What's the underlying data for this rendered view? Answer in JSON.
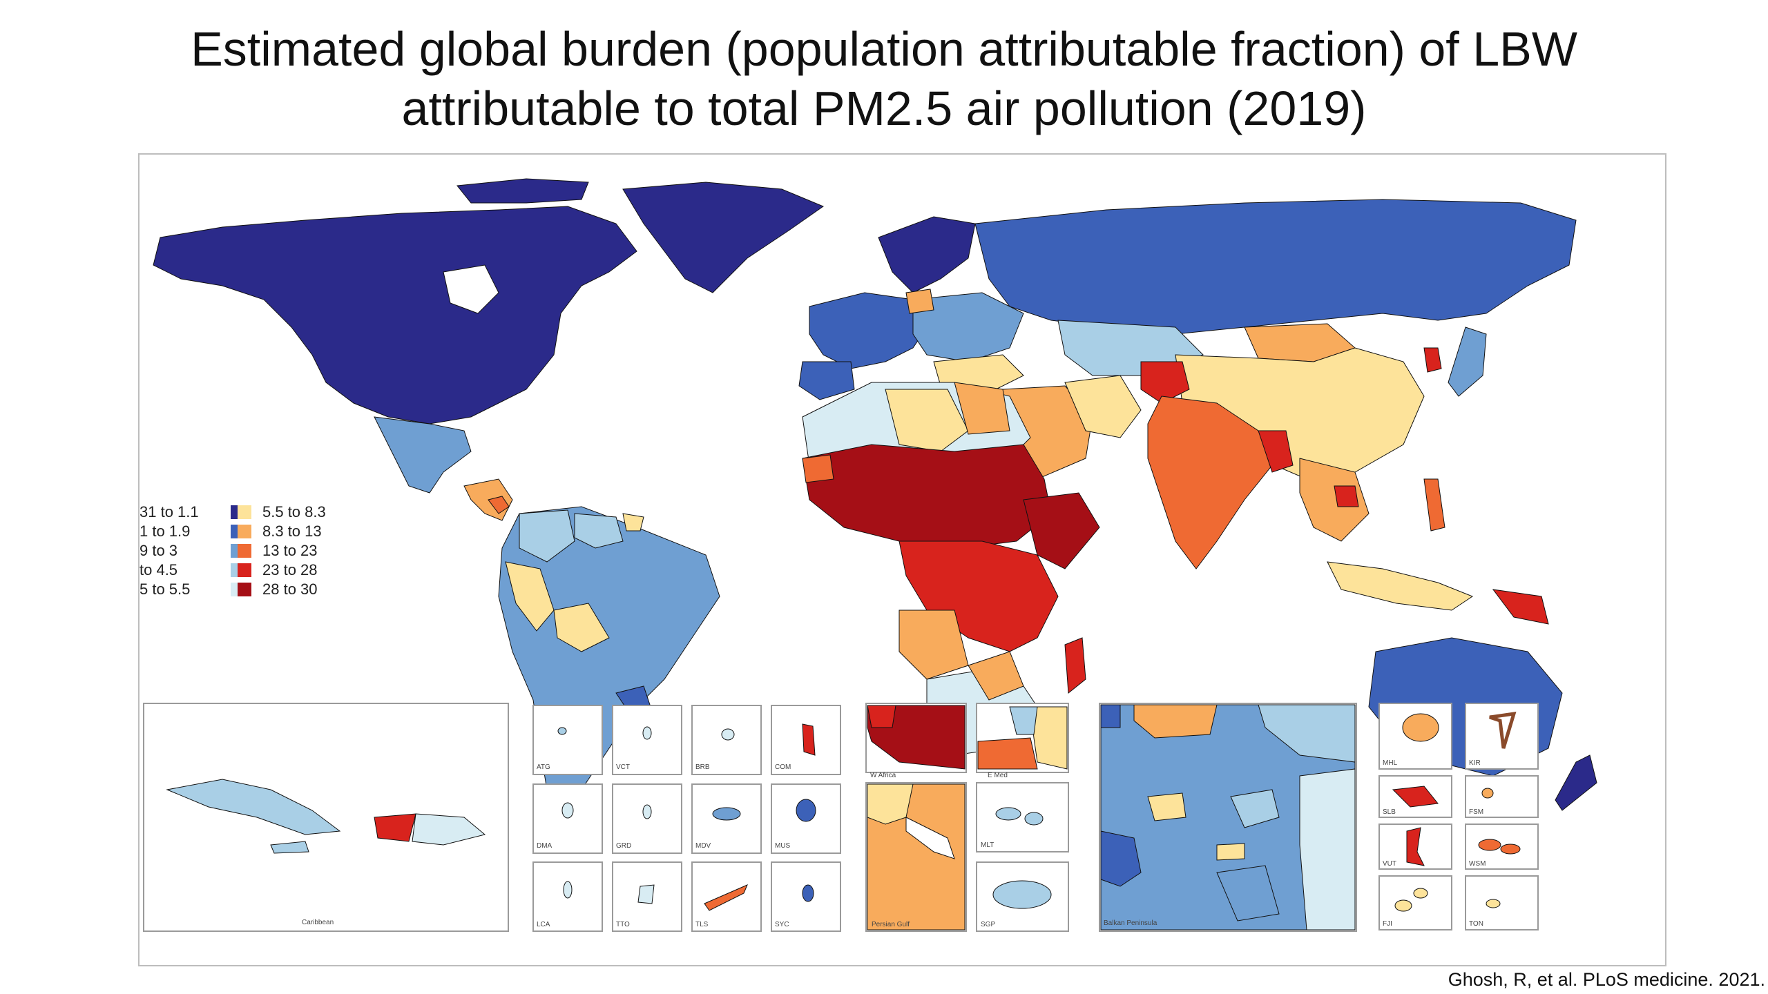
{
  "title_line1": "Estimated global burden (population attributable fraction) of LBW",
  "title_line2": "attributable to total PM2.5 air pollution (2019)",
  "citation": "Ghosh, R, et al. PLoS medicine. 2021.",
  "legend": [
    {
      "label": "31 to 1.1",
      "color": "#2b2a8a"
    },
    {
      "label": "1 to 1.9",
      "color": "#3c61b8"
    },
    {
      "label": "9 to 3",
      "color": "#6f9fd2"
    },
    {
      "label": "to 4.5",
      "color": "#a9cfe6"
    },
    {
      "label": "5 to 5.5",
      "color": "#d8ecf3"
    },
    {
      "label": "5.5 to 8.3",
      "color": "#fde39a"
    },
    {
      "label": "8.3 to 13",
      "color": "#f8ab5c"
    },
    {
      "label": "13 to 23",
      "color": "#ef6a33"
    },
    {
      "label": "23 to 28",
      "color": "#d8231d"
    },
    {
      "label": "28 to 30",
      "color": "#a50f16"
    }
  ],
  "insets": {
    "caribbean": "Caribbean",
    "atg": "ATG",
    "vct": "VCT",
    "brb": "BRB",
    "com": "COM",
    "dma": "DMA",
    "grd": "GRD",
    "mdv": "MDV",
    "mus": "MUS",
    "lca": "LCA",
    "tto": "TTO",
    "tls": "TLS",
    "syc": "SYC",
    "wafrica": "W Africa",
    "emed": "E Med",
    "persian": "Persian Gulf",
    "mlt": "MLT",
    "sgp": "SGP",
    "balkan": "Balkan Peninsula",
    "mhl": "MHL",
    "kir": "KIR",
    "slb": "SLB",
    "fsm": "FSM",
    "vut": "VUT",
    "wsm": "WSM",
    "fji": "FJI",
    "ton": "TON"
  }
}
